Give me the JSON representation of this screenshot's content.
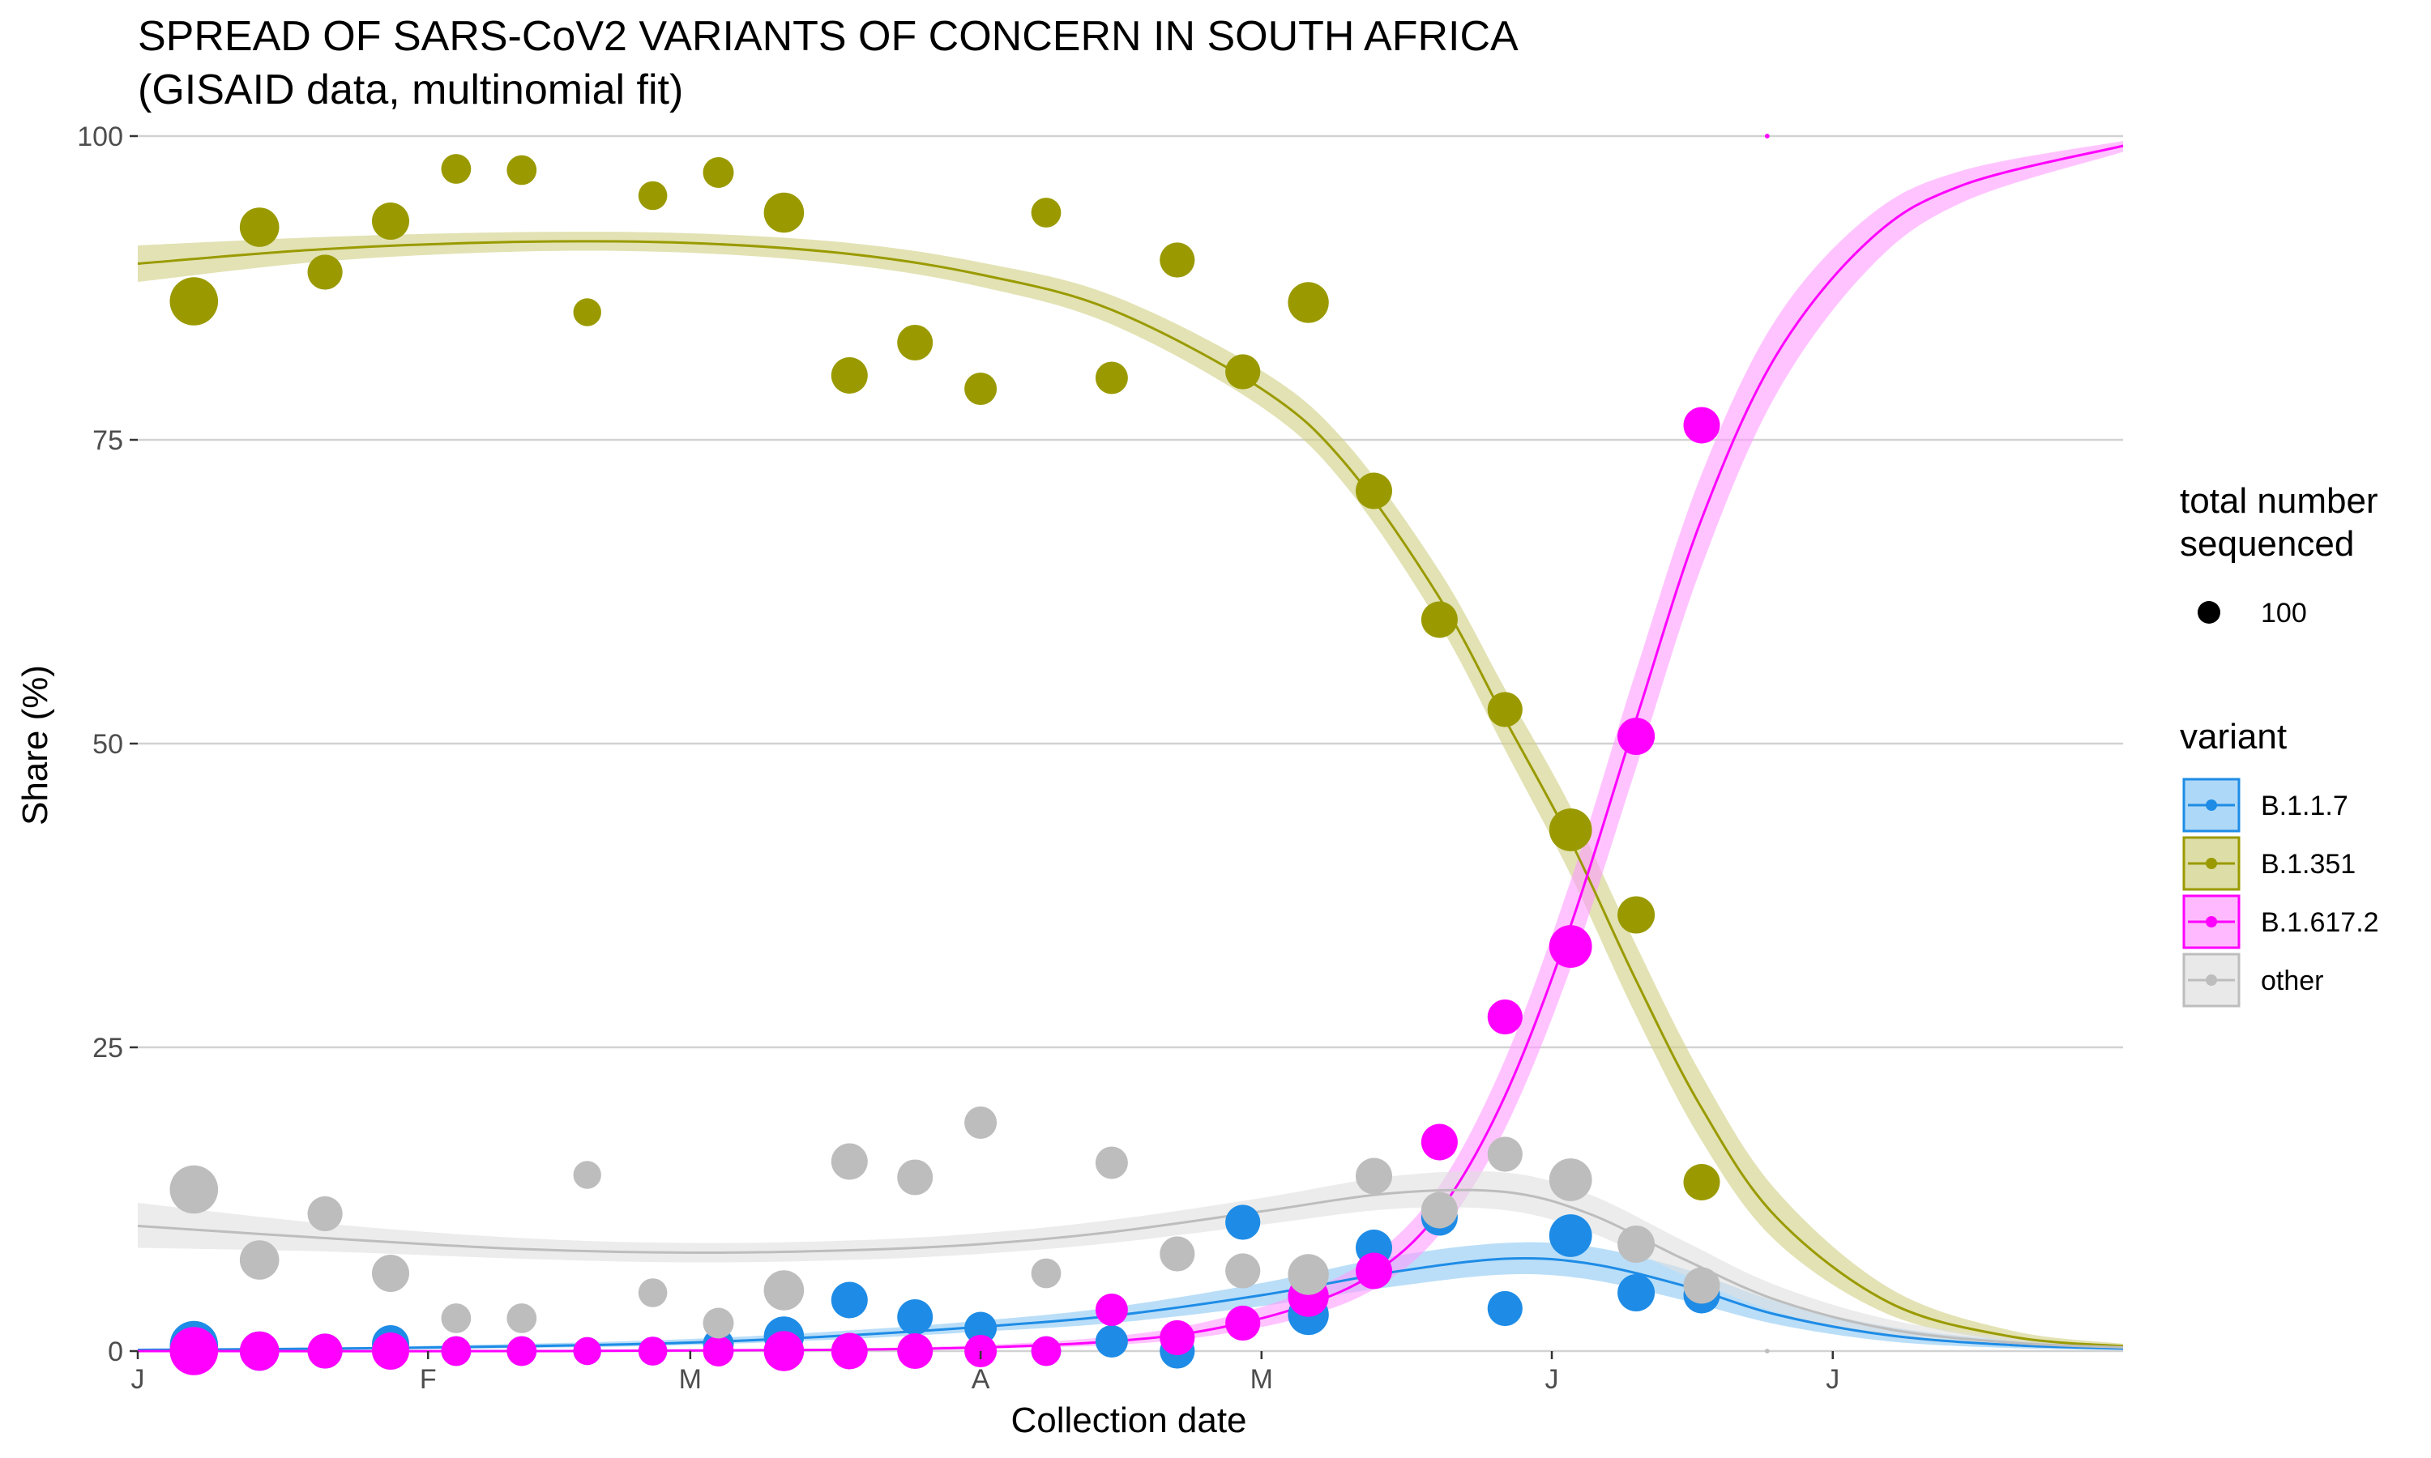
{
  "chart_data": {
    "type": "scatter",
    "title": "SPREAD OF SARS-CoV2 VARIANTS OF CONCERN IN SOUTH AFRICA",
    "subtitle": "(GISAID data, multinomial fit)",
    "xlabel": "Collection date",
    "ylabel": "Share (%)",
    "x_ticks": [
      "J",
      "F",
      "M",
      "A",
      "M",
      "J",
      "J"
    ],
    "x_tick_dates": [
      "2021-01-01",
      "2021-02-01",
      "2021-03-01",
      "2021-04-01",
      "2021-05-01",
      "2021-06-01",
      "2021-07-01"
    ],
    "xlim": [
      "2021-01-01",
      "2021-08-01"
    ],
    "ylim": [
      0,
      100
    ],
    "y_ticks": [
      0,
      25,
      50,
      75,
      100
    ],
    "grid": "horizontal major gridlines",
    "legend": {
      "position": "right",
      "size_title": "total number sequenced",
      "size_title_lines": [
        "total number",
        "sequenced"
      ],
      "size_key_label": "100",
      "size_key_value": 100,
      "variant_title": "variant"
    },
    "series": [
      {
        "name": "B.1.1.7",
        "color": "#1e8ce6",
        "fill": "#8cc8f4",
        "points": [
          {
            "x": "2021-01-07",
            "y": 0.5,
            "n": 210
          },
          {
            "x": "2021-01-14",
            "y": 0,
            "n": 140
          },
          {
            "x": "2021-01-21",
            "y": 0,
            "n": 110
          },
          {
            "x": "2021-01-28",
            "y": 0.6,
            "n": 125
          },
          {
            "x": "2021-02-04",
            "y": 0,
            "n": 80
          },
          {
            "x": "2021-02-11",
            "y": 0,
            "n": 80
          },
          {
            "x": "2021-02-18",
            "y": 0,
            "n": 70
          },
          {
            "x": "2021-02-25",
            "y": 0,
            "n": 75
          },
          {
            "x": "2021-03-04",
            "y": 0.6,
            "n": 85
          },
          {
            "x": "2021-03-11",
            "y": 1.2,
            "n": 145
          },
          {
            "x": "2021-03-18",
            "y": 4.2,
            "n": 120
          },
          {
            "x": "2021-03-25",
            "y": 2.8,
            "n": 115
          },
          {
            "x": "2021-04-01",
            "y": 1.9,
            "n": 95
          },
          {
            "x": "2021-04-08",
            "y": 0,
            "n": 80
          },
          {
            "x": "2021-04-15",
            "y": 0.8,
            "n": 95
          },
          {
            "x": "2021-04-22",
            "y": 0,
            "n": 110
          },
          {
            "x": "2021-04-29",
            "y": 10.6,
            "n": 110
          },
          {
            "x": "2021-05-06",
            "y": 3.0,
            "n": 150
          },
          {
            "x": "2021-05-13",
            "y": 8.5,
            "n": 120
          },
          {
            "x": "2021-05-20",
            "y": 11.0,
            "n": 120
          },
          {
            "x": "2021-05-27",
            "y": 3.5,
            "n": 110
          },
          {
            "x": "2021-06-03",
            "y": 9.5,
            "n": 165
          },
          {
            "x": "2021-06-10",
            "y": 4.8,
            "n": 125
          },
          {
            "x": "2021-06-17",
            "y": 4.6,
            "n": 120
          }
        ],
        "fit": [
          {
            "x": "2021-01-01",
            "y": 0.1,
            "lo": 0.05,
            "hi": 0.2
          },
          {
            "x": "2021-01-21",
            "y": 0.2,
            "lo": 0.1,
            "hi": 0.3
          },
          {
            "x": "2021-02-11",
            "y": 0.4,
            "lo": 0.25,
            "hi": 0.6
          },
          {
            "x": "2021-03-01",
            "y": 0.7,
            "lo": 0.5,
            "hi": 1.0
          },
          {
            "x": "2021-03-18",
            "y": 1.3,
            "lo": 1.0,
            "hi": 1.7
          },
          {
            "x": "2021-04-01",
            "y": 2.0,
            "lo": 1.6,
            "hi": 2.5
          },
          {
            "x": "2021-04-15",
            "y": 2.9,
            "lo": 2.3,
            "hi": 3.6
          },
          {
            "x": "2021-05-01",
            "y": 4.6,
            "lo": 3.7,
            "hi": 5.6
          },
          {
            "x": "2021-05-15",
            "y": 6.5,
            "lo": 5.3,
            "hi": 7.8
          },
          {
            "x": "2021-05-27",
            "y": 7.6,
            "lo": 6.3,
            "hi": 8.9
          },
          {
            "x": "2021-06-05",
            "y": 7.2,
            "lo": 5.9,
            "hi": 8.6
          },
          {
            "x": "2021-06-15",
            "y": 5.4,
            "lo": 4.2,
            "hi": 6.8
          },
          {
            "x": "2021-06-25",
            "y": 3.0,
            "lo": 2.2,
            "hi": 4.1
          },
          {
            "x": "2021-07-07",
            "y": 1.3,
            "lo": 0.8,
            "hi": 2.0
          },
          {
            "x": "2021-07-20",
            "y": 0.5,
            "lo": 0.25,
            "hi": 0.9
          },
          {
            "x": "2021-08-01",
            "y": 0.2,
            "lo": 0.08,
            "hi": 0.4
          }
        ]
      },
      {
        "name": "B.1.351",
        "color": "#9a9a00",
        "fill": "#cfcf82",
        "points": [
          {
            "x": "2021-01-07",
            "y": 86.4,
            "n": 210
          },
          {
            "x": "2021-01-14",
            "y": 92.5,
            "n": 140
          },
          {
            "x": "2021-01-21",
            "y": 88.8,
            "n": 110
          },
          {
            "x": "2021-01-28",
            "y": 93.0,
            "n": 125
          },
          {
            "x": "2021-02-04",
            "y": 97.3,
            "n": 80
          },
          {
            "x": "2021-02-11",
            "y": 97.2,
            "n": 80
          },
          {
            "x": "2021-02-18",
            "y": 85.5,
            "n": 70
          },
          {
            "x": "2021-02-25",
            "y": 95.1,
            "n": 75
          },
          {
            "x": "2021-03-04",
            "y": 97.0,
            "n": 85
          },
          {
            "x": "2021-03-11",
            "y": 93.7,
            "n": 145
          },
          {
            "x": "2021-03-18",
            "y": 80.3,
            "n": 120
          },
          {
            "x": "2021-03-25",
            "y": 83.0,
            "n": 115
          },
          {
            "x": "2021-04-01",
            "y": 79.2,
            "n": 95
          },
          {
            "x": "2021-04-08",
            "y": 93.7,
            "n": 80
          },
          {
            "x": "2021-04-15",
            "y": 80.1,
            "n": 95
          },
          {
            "x": "2021-04-22",
            "y": 89.8,
            "n": 110
          },
          {
            "x": "2021-04-29",
            "y": 80.6,
            "n": 110
          },
          {
            "x": "2021-05-06",
            "y": 86.3,
            "n": 150
          },
          {
            "x": "2021-05-13",
            "y": 70.8,
            "n": 120
          },
          {
            "x": "2021-05-20",
            "y": 60.2,
            "n": 120
          },
          {
            "x": "2021-05-27",
            "y": 52.8,
            "n": 110
          },
          {
            "x": "2021-06-03",
            "y": 42.9,
            "n": 165
          },
          {
            "x": "2021-06-10",
            "y": 35.9,
            "n": 125
          },
          {
            "x": "2021-06-17",
            "y": 13.9,
            "n": 120
          }
        ],
        "fit": [
          {
            "x": "2021-01-01",
            "y": 89.5,
            "lo": 88.0,
            "hi": 91.0
          },
          {
            "x": "2021-01-21",
            "y": 90.7,
            "lo": 89.7,
            "hi": 91.7
          },
          {
            "x": "2021-02-11",
            "y": 91.3,
            "lo": 90.5,
            "hi": 92.1
          },
          {
            "x": "2021-03-01",
            "y": 91.2,
            "lo": 90.4,
            "hi": 92.0
          },
          {
            "x": "2021-03-18",
            "y": 90.3,
            "lo": 89.4,
            "hi": 91.2
          },
          {
            "x": "2021-04-01",
            "y": 88.6,
            "lo": 87.6,
            "hi": 89.6
          },
          {
            "x": "2021-04-15",
            "y": 85.7,
            "lo": 84.5,
            "hi": 86.9
          },
          {
            "x": "2021-05-01",
            "y": 79.2,
            "lo": 77.7,
            "hi": 80.7
          },
          {
            "x": "2021-05-10",
            "y": 73.0,
            "lo": 71.2,
            "hi": 74.8
          },
          {
            "x": "2021-05-20",
            "y": 62.0,
            "lo": 59.8,
            "hi": 64.2
          },
          {
            "x": "2021-05-27",
            "y": 52.0,
            "lo": 49.5,
            "hi": 54.5
          },
          {
            "x": "2021-06-03",
            "y": 42.0,
            "lo": 39.2,
            "hi": 44.8
          },
          {
            "x": "2021-06-10",
            "y": 30.5,
            "lo": 27.6,
            "hi": 33.4
          },
          {
            "x": "2021-06-17",
            "y": 20.0,
            "lo": 17.3,
            "hi": 22.7
          },
          {
            "x": "2021-06-25",
            "y": 11.0,
            "lo": 9.0,
            "hi": 13.2
          },
          {
            "x": "2021-07-07",
            "y": 4.0,
            "lo": 3.0,
            "hi": 5.2
          },
          {
            "x": "2021-07-20",
            "y": 1.2,
            "lo": 0.8,
            "hi": 1.7
          },
          {
            "x": "2021-08-01",
            "y": 0.4,
            "lo": 0.2,
            "hi": 0.6
          }
        ]
      },
      {
        "name": "B.1.617.2",
        "color": "#ff00ff",
        "fill": "#ff9cff",
        "points": [
          {
            "x": "2021-01-07",
            "y": 0,
            "n": 210
          },
          {
            "x": "2021-01-14",
            "y": 0,
            "n": 140
          },
          {
            "x": "2021-01-21",
            "y": 0,
            "n": 110
          },
          {
            "x": "2021-01-28",
            "y": 0,
            "n": 125
          },
          {
            "x": "2021-02-04",
            "y": 0,
            "n": 80
          },
          {
            "x": "2021-02-11",
            "y": 0,
            "n": 80
          },
          {
            "x": "2021-02-18",
            "y": 0,
            "n": 70
          },
          {
            "x": "2021-02-25",
            "y": 0,
            "n": 75
          },
          {
            "x": "2021-03-04",
            "y": 0,
            "n": 85
          },
          {
            "x": "2021-03-11",
            "y": 0,
            "n": 145
          },
          {
            "x": "2021-03-18",
            "y": 0,
            "n": 120
          },
          {
            "x": "2021-03-25",
            "y": 0,
            "n": 115
          },
          {
            "x": "2021-04-01",
            "y": 0,
            "n": 95
          },
          {
            "x": "2021-04-08",
            "y": 0,
            "n": 80
          },
          {
            "x": "2021-04-15",
            "y": 3.4,
            "n": 95
          },
          {
            "x": "2021-04-22",
            "y": 1.1,
            "n": 110
          },
          {
            "x": "2021-04-29",
            "y": 2.3,
            "n": 110
          },
          {
            "x": "2021-05-06",
            "y": 4.5,
            "n": 150
          },
          {
            "x": "2021-05-13",
            "y": 6.6,
            "n": 120
          },
          {
            "x": "2021-05-20",
            "y": 17.2,
            "n": 120
          },
          {
            "x": "2021-05-27",
            "y": 27.5,
            "n": 110
          },
          {
            "x": "2021-06-03",
            "y": 33.3,
            "n": 165
          },
          {
            "x": "2021-06-10",
            "y": 50.6,
            "n": 125
          },
          {
            "x": "2021-06-17",
            "y": 76.2,
            "n": 120
          },
          {
            "x": "2021-06-24",
            "y": 100,
            "n": 2
          }
        ],
        "fit": [
          {
            "x": "2021-01-01",
            "y": 0.0,
            "lo": 0.0,
            "hi": 0.05
          },
          {
            "x": "2021-02-15",
            "y": 0.0,
            "lo": 0.0,
            "hi": 0.05
          },
          {
            "x": "2021-03-15",
            "y": 0.1,
            "lo": 0.05,
            "hi": 0.2
          },
          {
            "x": "2021-04-01",
            "y": 0.3,
            "lo": 0.2,
            "hi": 0.5
          },
          {
            "x": "2021-04-15",
            "y": 0.8,
            "lo": 0.5,
            "hi": 1.2
          },
          {
            "x": "2021-04-25",
            "y": 1.7,
            "lo": 1.2,
            "hi": 2.4
          },
          {
            "x": "2021-05-05",
            "y": 3.6,
            "lo": 2.7,
            "hi": 4.7
          },
          {
            "x": "2021-05-13",
            "y": 6.4,
            "lo": 5.1,
            "hi": 7.9
          },
          {
            "x": "2021-05-20",
            "y": 11.5,
            "lo": 9.6,
            "hi": 13.6
          },
          {
            "x": "2021-05-27",
            "y": 21.0,
            "lo": 18.3,
            "hi": 24.0
          },
          {
            "x": "2021-06-03",
            "y": 35.0,
            "lo": 31.5,
            "hi": 38.7
          },
          {
            "x": "2021-06-10",
            "y": 52.0,
            "lo": 48.0,
            "hi": 56.0
          },
          {
            "x": "2021-06-17",
            "y": 68.5,
            "lo": 64.6,
            "hi": 72.2
          },
          {
            "x": "2021-06-25",
            "y": 82.0,
            "lo": 78.8,
            "hi": 85.0
          },
          {
            "x": "2021-07-05",
            "y": 91.5,
            "lo": 89.2,
            "hi": 93.5
          },
          {
            "x": "2021-07-15",
            "y": 96.0,
            "lo": 94.6,
            "hi": 97.2
          },
          {
            "x": "2021-08-01",
            "y": 99.2,
            "lo": 98.7,
            "hi": 99.6
          }
        ]
      },
      {
        "name": "other",
        "color": "#bdbdbd",
        "fill": "#e0e0e0",
        "points": [
          {
            "x": "2021-01-07",
            "y": 13.3,
            "n": 210
          },
          {
            "x": "2021-01-14",
            "y": 7.5,
            "n": 140
          },
          {
            "x": "2021-01-21",
            "y": 11.3,
            "n": 110
          },
          {
            "x": "2021-01-28",
            "y": 6.4,
            "n": 125
          },
          {
            "x": "2021-02-04",
            "y": 2.7,
            "n": 80
          },
          {
            "x": "2021-02-11",
            "y": 2.7,
            "n": 80
          },
          {
            "x": "2021-02-18",
            "y": 14.5,
            "n": 70
          },
          {
            "x": "2021-02-25",
            "y": 4.8,
            "n": 75
          },
          {
            "x": "2021-03-04",
            "y": 2.3,
            "n": 85
          },
          {
            "x": "2021-03-11",
            "y": 5.0,
            "n": 145
          },
          {
            "x": "2021-03-18",
            "y": 15.6,
            "n": 120
          },
          {
            "x": "2021-03-25",
            "y": 14.3,
            "n": 115
          },
          {
            "x": "2021-04-01",
            "y": 18.8,
            "n": 95
          },
          {
            "x": "2021-04-08",
            "y": 6.4,
            "n": 80
          },
          {
            "x": "2021-04-15",
            "y": 15.5,
            "n": 95
          },
          {
            "x": "2021-04-22",
            "y": 8.0,
            "n": 110
          },
          {
            "x": "2021-04-29",
            "y": 6.6,
            "n": 110
          },
          {
            "x": "2021-05-06",
            "y": 6.3,
            "n": 150
          },
          {
            "x": "2021-05-13",
            "y": 14.4,
            "n": 120
          },
          {
            "x": "2021-05-20",
            "y": 11.6,
            "n": 120
          },
          {
            "x": "2021-05-27",
            "y": 16.2,
            "n": 110
          },
          {
            "x": "2021-06-03",
            "y": 14.1,
            "n": 165
          },
          {
            "x": "2021-06-10",
            "y": 8.8,
            "n": 125
          },
          {
            "x": "2021-06-17",
            "y": 5.4,
            "n": 120
          },
          {
            "x": "2021-06-24",
            "y": 0,
            "n": 2
          }
        ],
        "fit": [
          {
            "x": "2021-01-01",
            "y": 10.3,
            "lo": 8.5,
            "hi": 12.2
          },
          {
            "x": "2021-01-21",
            "y": 9.3,
            "lo": 8.2,
            "hi": 10.5
          },
          {
            "x": "2021-02-11",
            "y": 8.4,
            "lo": 7.6,
            "hi": 9.3
          },
          {
            "x": "2021-03-01",
            "y": 8.1,
            "lo": 7.3,
            "hi": 8.9
          },
          {
            "x": "2021-03-18",
            "y": 8.3,
            "lo": 7.5,
            "hi": 9.1
          },
          {
            "x": "2021-04-01",
            "y": 8.8,
            "lo": 8.0,
            "hi": 9.7
          },
          {
            "x": "2021-04-15",
            "y": 9.8,
            "lo": 8.9,
            "hi": 10.8
          },
          {
            "x": "2021-05-01",
            "y": 11.5,
            "lo": 10.4,
            "hi": 12.6
          },
          {
            "x": "2021-05-15",
            "y": 13.0,
            "lo": 11.7,
            "hi": 14.4
          },
          {
            "x": "2021-05-27",
            "y": 13.1,
            "lo": 11.6,
            "hi": 14.7
          },
          {
            "x": "2021-06-05",
            "y": 11.3,
            "lo": 9.8,
            "hi": 12.9
          },
          {
            "x": "2021-06-15",
            "y": 7.6,
            "lo": 6.3,
            "hi": 9.1
          },
          {
            "x": "2021-06-25",
            "y": 4.2,
            "lo": 3.2,
            "hi": 5.4
          },
          {
            "x": "2021-07-07",
            "y": 1.8,
            "lo": 1.2,
            "hi": 2.6
          },
          {
            "x": "2021-07-20",
            "y": 0.7,
            "lo": 0.4,
            "hi": 1.1
          },
          {
            "x": "2021-08-01",
            "y": 0.3,
            "lo": 0.1,
            "hi": 0.5
          }
        ]
      }
    ]
  }
}
